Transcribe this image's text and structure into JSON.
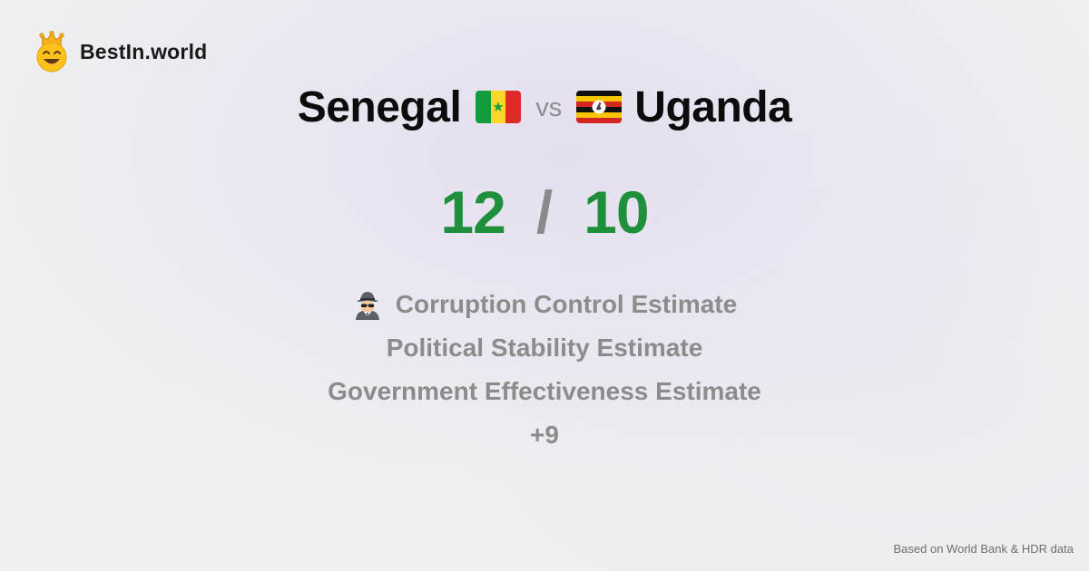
{
  "brand": {
    "name": "BestIn.world",
    "logo_icon": "crown-smiley-icon"
  },
  "comparison": {
    "country_a": {
      "name": "Senegal",
      "flag_icon": "senegal-flag-icon",
      "score": "12"
    },
    "vs_label": "vs",
    "country_b": {
      "name": "Uganda",
      "flag_icon": "uganda-flag-icon",
      "score": "10"
    },
    "score_separator": "/"
  },
  "metrics": [
    {
      "label": "Corruption Control Estimate",
      "icon": "spy-icon"
    },
    {
      "label": "Political Stability Estimate"
    },
    {
      "label": "Government Effectiveness Estimate"
    }
  ],
  "more_label": "+9",
  "footer": {
    "source": "Based on World Bank & HDR data"
  },
  "colors": {
    "score": "#1e8f3a",
    "muted": "#8c8c8c",
    "background": "#efeff2"
  }
}
